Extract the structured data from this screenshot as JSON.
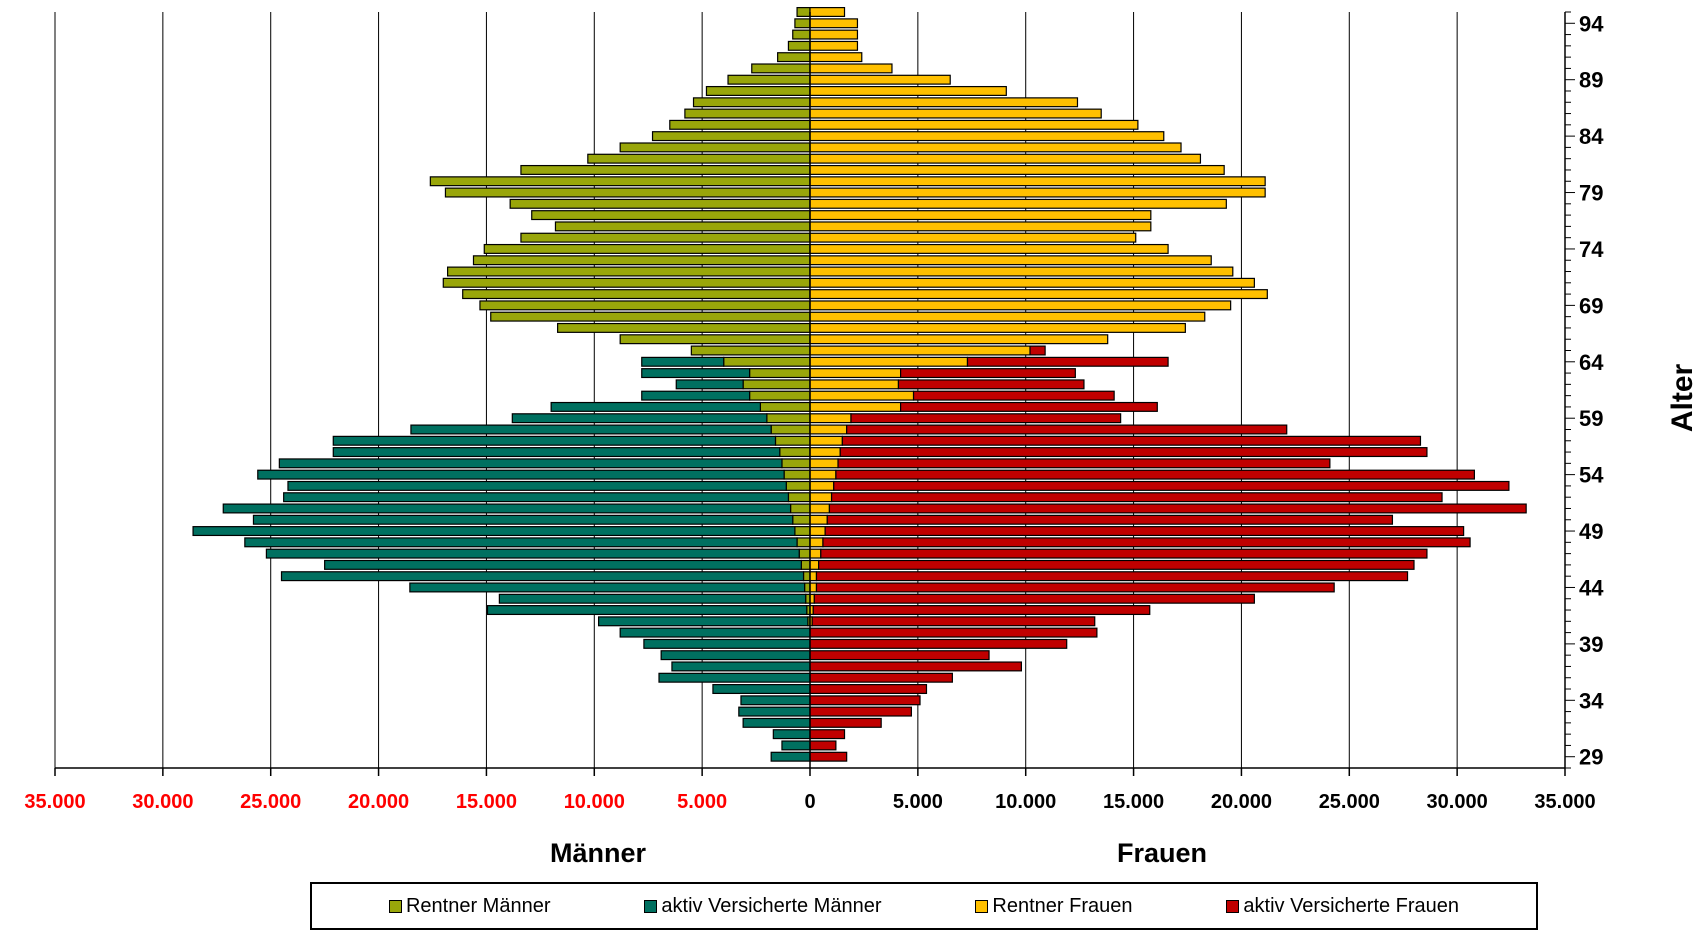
{
  "chart_data": {
    "type": "bar",
    "orientation": "horizontal",
    "xlim": [
      -35000,
      35000
    ],
    "x_ticks": [
      {
        "value": -35000,
        "label": "35.000"
      },
      {
        "value": -30000,
        "label": "30.000"
      },
      {
        "value": -25000,
        "label": "25.000"
      },
      {
        "value": -20000,
        "label": "20.000"
      },
      {
        "value": -15000,
        "label": "15.000"
      },
      {
        "value": -10000,
        "label": "10.000"
      },
      {
        "value": -5000,
        "label": "5.000"
      },
      {
        "value": 0,
        "label": "0"
      },
      {
        "value": 5000,
        "label": "5.000"
      },
      {
        "value": 10000,
        "label": "10.000"
      },
      {
        "value": 15000,
        "label": "15.000"
      },
      {
        "value": 20000,
        "label": "20.000"
      },
      {
        "value": 25000,
        "label": "25.000"
      },
      {
        "value": 30000,
        "label": "30.000"
      },
      {
        "value": 35000,
        "label": "35.000"
      }
    ],
    "x_tick_color_left": "#ff0000",
    "x_tick_color_right": "#000000",
    "ylim": [
      28,
      95
    ],
    "y_ticks": [
      29,
      34,
      39,
      44,
      49,
      54,
      59,
      64,
      69,
      74,
      79,
      84,
      89,
      94
    ],
    "ylabel": "Alter",
    "xlabel_left": "Männer",
    "xlabel_right": "Frauen",
    "grid": "vertical",
    "legend_position": "bottom",
    "ages": [
      29,
      30,
      31,
      32,
      33,
      34,
      35,
      36,
      37,
      38,
      39,
      40,
      41,
      42,
      43,
      44,
      45,
      46,
      47,
      48,
      49,
      50,
      51,
      52,
      53,
      54,
      55,
      56,
      57,
      58,
      59,
      60,
      61,
      62,
      63,
      64,
      65,
      66,
      67,
      68,
      69,
      70,
      71,
      72,
      73,
      74,
      75,
      76,
      77,
      78,
      79,
      80,
      81,
      82,
      83,
      84,
      85,
      86,
      87,
      88,
      89,
      90,
      91,
      92,
      93,
      94,
      95
    ],
    "series": [
      {
        "name": "Rentner Männer",
        "color": "#99a60a",
        "side": "left",
        "stack": "inner",
        "values": [
          0,
          0,
          0,
          0,
          0,
          0,
          0,
          0,
          0,
          0,
          0,
          0,
          100,
          150,
          200,
          250,
          300,
          400,
          500,
          600,
          700,
          800,
          900,
          1000,
          1100,
          1200,
          1300,
          1400,
          1600,
          1800,
          2000,
          2300,
          2800,
          3100,
          2800,
          4000,
          5500,
          8800,
          11700,
          14800,
          15300,
          16100,
          17000,
          16800,
          15600,
          15100,
          13400,
          11800,
          12900,
          13900,
          16900,
          17600,
          13400,
          10300,
          8800,
          7300,
          6500,
          5800,
          5400,
          4800,
          3800,
          2700,
          1500,
          1000,
          800,
          700,
          600
        ]
      },
      {
        "name": "aktiv Versicherte Männer",
        "color": "#007060",
        "side": "left",
        "stack": "outer",
        "values": [
          1800,
          1300,
          1700,
          3100,
          3300,
          3200,
          4500,
          7000,
          6400,
          6900,
          7700,
          8800,
          9700,
          14800,
          14200,
          18300,
          24200,
          22100,
          24700,
          25600,
          27900,
          25000,
          26300,
          23400,
          23100,
          24400,
          23300,
          20700,
          20500,
          16700,
          11800,
          9700,
          5000,
          3100,
          5000,
          3800,
          0,
          0,
          0,
          0,
          0,
          0,
          0,
          0,
          0,
          0,
          0,
          0,
          0,
          0,
          0,
          0,
          0,
          0,
          0,
          0,
          0,
          0,
          0,
          0,
          0,
          0,
          0,
          0,
          0,
          0,
          0
        ]
      },
      {
        "name": "Rentner Frauen",
        "color": "#ffc000",
        "side": "right",
        "stack": "inner",
        "values": [
          0,
          0,
          0,
          0,
          0,
          0,
          0,
          0,
          0,
          0,
          0,
          0,
          100,
          150,
          200,
          300,
          300,
          400,
          500,
          600,
          700,
          800,
          900,
          1000,
          1100,
          1200,
          1300,
          1400,
          1500,
          1700,
          1900,
          4200,
          4800,
          4100,
          4200,
          7300,
          10200,
          13800,
          17400,
          18300,
          19500,
          21200,
          20600,
          19600,
          18600,
          16600,
          15100,
          15800,
          15800,
          19300,
          21100,
          21100,
          19200,
          18100,
          17200,
          16400,
          15200,
          13500,
          12400,
          9100,
          6500,
          3800,
          2400,
          2200,
          2200,
          2200,
          1600
        ]
      },
      {
        "name": "aktiv Versicherte Frauen",
        "color": "#c00000",
        "side": "right",
        "stack": "outer",
        "values": [
          1700,
          1200,
          1600,
          3300,
          4700,
          5100,
          5400,
          6600,
          9800,
          8300,
          11900,
          13300,
          13100,
          15600,
          20400,
          24000,
          27400,
          27600,
          28100,
          30000,
          29600,
          26200,
          32300,
          28300,
          31300,
          29600,
          22800,
          27200,
          26800,
          20400,
          12500,
          11900,
          9300,
          8600,
          8100,
          9300,
          700,
          0,
          0,
          0,
          0,
          0,
          0,
          0,
          0,
          0,
          0,
          0,
          0,
          0,
          0,
          0,
          0,
          0,
          0,
          0,
          0,
          0,
          0,
          0,
          0,
          0,
          0,
          0,
          0,
          0,
          0
        ]
      }
    ]
  },
  "legend": {
    "items": [
      {
        "label": "Rentner Männer",
        "color": "#99a60a"
      },
      {
        "label": "aktiv Versicherte Männer",
        "color": "#007060"
      },
      {
        "label": "Rentner Frauen",
        "color": "#ffc000"
      },
      {
        "label": "aktiv Versicherte Frauen",
        "color": "#c00000"
      }
    ]
  }
}
